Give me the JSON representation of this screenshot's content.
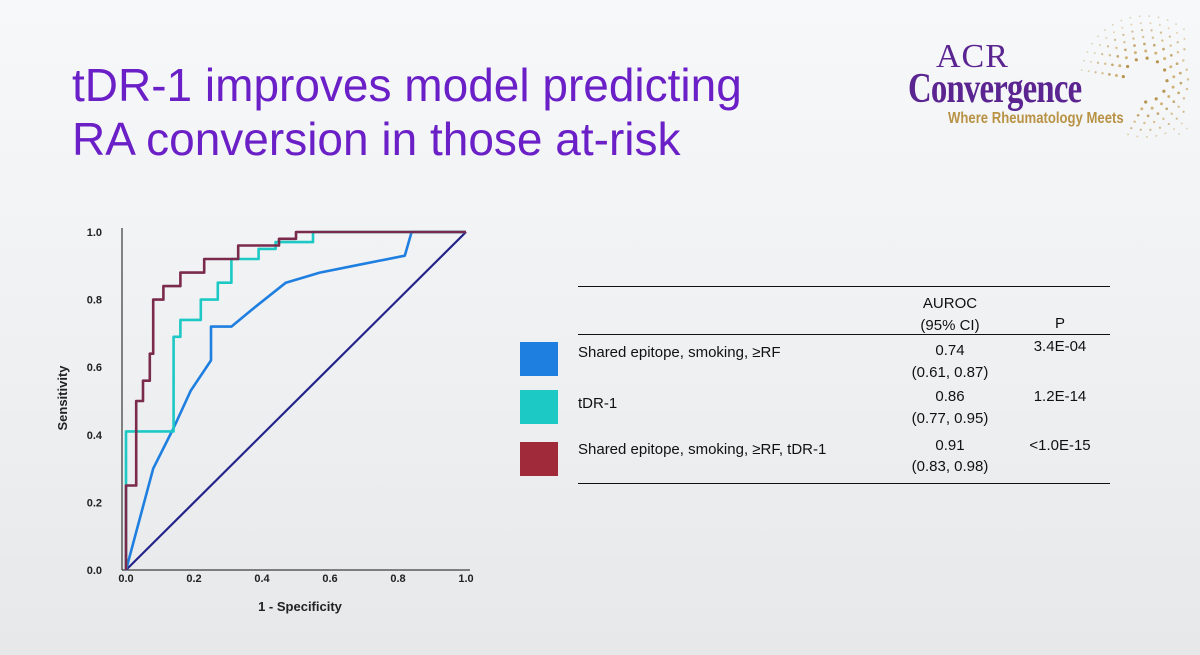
{
  "title": {
    "line1": "tDR-1 improves model predicting",
    "line2": "RA conversion in those at-risk"
  },
  "logo": {
    "top": "ACR",
    "main": "Convergence",
    "tagline": "Where Rheumatology Meets",
    "colors": {
      "purple": "#5a2590",
      "gold": "#b89245"
    }
  },
  "chart_data": {
    "type": "line",
    "title": "",
    "xlabel": "1 - Specificity",
    "ylabel": "Sensitivity",
    "xlim": [
      0,
      1
    ],
    "ylim": [
      0,
      1
    ],
    "xticks": [
      "0.0",
      "0.2",
      "0.4",
      "0.6",
      "0.8",
      "1.0"
    ],
    "yticks": [
      "0.0",
      "0.2",
      "0.4",
      "0.6",
      "0.8",
      "1.0"
    ],
    "grid": false,
    "reference_line": {
      "points": [
        [
          0,
          0
        ],
        [
          1,
          1
        ]
      ],
      "color": "#23238a"
    },
    "series": [
      {
        "name": "Shared epitope, smoking, ≥RF",
        "color": "#1f7fe0",
        "points": [
          [
            0,
            0
          ],
          [
            0.08,
            0.3
          ],
          [
            0.14,
            0.42
          ],
          [
            0.19,
            0.53
          ],
          [
            0.25,
            0.62
          ],
          [
            0.25,
            0.72
          ],
          [
            0.31,
            0.72
          ],
          [
            0.37,
            0.77
          ],
          [
            0.47,
            0.85
          ],
          [
            0.57,
            0.88
          ],
          [
            0.67,
            0.9
          ],
          [
            0.82,
            0.93
          ],
          [
            0.84,
            1
          ],
          [
            1,
            1
          ]
        ]
      },
      {
        "name": "tDR-1",
        "color": "#1cc9c4",
        "points": [
          [
            0,
            0
          ],
          [
            0,
            0.41
          ],
          [
            0.14,
            0.41
          ],
          [
            0.14,
            0.69
          ],
          [
            0.16,
            0.69
          ],
          [
            0.16,
            0.74
          ],
          [
            0.22,
            0.74
          ],
          [
            0.22,
            0.8
          ],
          [
            0.27,
            0.8
          ],
          [
            0.27,
            0.85
          ],
          [
            0.31,
            0.85
          ],
          [
            0.31,
            0.92
          ],
          [
            0.39,
            0.92
          ],
          [
            0.39,
            0.95
          ],
          [
            0.44,
            0.95
          ],
          [
            0.44,
            0.97
          ],
          [
            0.55,
            0.97
          ],
          [
            0.55,
            1
          ],
          [
            1,
            1
          ]
        ]
      },
      {
        "name": "Shared epitope, smoking, ≥RF, tDR-1",
        "color": "#7a2a4a",
        "points": [
          [
            0,
            0
          ],
          [
            0,
            0.25
          ],
          [
            0.03,
            0.25
          ],
          [
            0.03,
            0.5
          ],
          [
            0.05,
            0.5
          ],
          [
            0.05,
            0.56
          ],
          [
            0.07,
            0.56
          ],
          [
            0.07,
            0.64
          ],
          [
            0.08,
            0.64
          ],
          [
            0.08,
            0.8
          ],
          [
            0.11,
            0.8
          ],
          [
            0.11,
            0.84
          ],
          [
            0.16,
            0.84
          ],
          [
            0.16,
            0.88
          ],
          [
            0.23,
            0.88
          ],
          [
            0.23,
            0.92
          ],
          [
            0.33,
            0.92
          ],
          [
            0.33,
            0.96
          ],
          [
            0.45,
            0.96
          ],
          [
            0.45,
            0.98
          ],
          [
            0.5,
            0.98
          ],
          [
            0.5,
            1
          ],
          [
            1,
            1
          ]
        ]
      }
    ]
  },
  "table": {
    "header": {
      "auroc_line1": "AUROC",
      "auroc_line2": "(95% CI)",
      "p": "P"
    },
    "rows": [
      {
        "label": "Shared epitope, smoking, ≥RF",
        "auroc": "0.74",
        "ci": "(0.61, 0.87)",
        "p": "3.4E-04",
        "color": "#1f7fe0"
      },
      {
        "label": "tDR-1",
        "auroc": "0.86",
        "ci": "(0.77, 0.95)",
        "p": "1.2E-14",
        "color": "#1cc9c4"
      },
      {
        "label": "Shared epitope, smoking, ≥RF, tDR-1",
        "auroc": "0.91",
        "ci": "(0.83, 0.98)",
        "p": "<1.0E-15",
        "color": "#a12a3a"
      }
    ]
  }
}
